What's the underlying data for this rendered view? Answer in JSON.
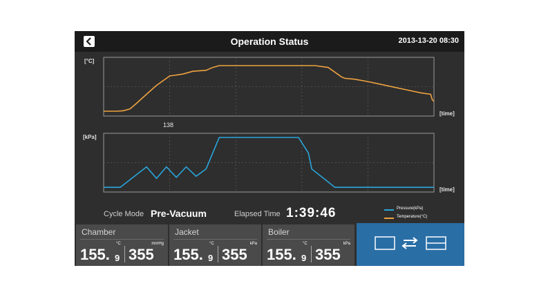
{
  "header": {
    "title": "Operation Status",
    "datetime": "2013-13-20  08:30"
  },
  "colors": {
    "temperature": "#f0a340",
    "pressure": "#2aa6dc",
    "accent": "#2a6ea6"
  },
  "chart_data": [
    {
      "type": "line",
      "ylabel": "[°C]",
      "xlabel": "[time]",
      "x_ticks": [
        "138"
      ],
      "grid": true,
      "series": [
        {
          "name": "Temperature(°C)",
          "x": [
            0,
            4,
            6,
            8,
            10,
            12,
            16,
            20,
            24,
            27,
            31,
            33,
            35,
            39,
            43,
            50,
            59,
            64,
            68,
            72,
            73,
            76,
            80,
            84,
            88,
            92,
            96,
            99,
            99.5,
            100
          ],
          "y": [
            3,
            3,
            4,
            8,
            20,
            33,
            58,
            78,
            82,
            88,
            90,
            96,
            100,
            100,
            100,
            100,
            100,
            100,
            96,
            76,
            73,
            71,
            66,
            60,
            54,
            48,
            42,
            39,
            27,
            24
          ]
        }
      ]
    },
    {
      "type": "line",
      "ylabel": "[kPa]",
      "xlabel": "[time]",
      "grid": true,
      "series": [
        {
          "name": "Pressure(kPa)",
          "x": [
            0,
            5,
            13,
            16,
            19,
            22,
            25,
            28,
            31,
            35,
            59,
            62,
            63,
            65,
            67,
            70,
            100
          ],
          "y": [
            5,
            5,
            44,
            22,
            44,
            24,
            44,
            26,
            40,
            100,
            100,
            70,
            40,
            30,
            20,
            5,
            5
          ]
        }
      ]
    }
  ],
  "info": {
    "cycle_mode_label": "Cycle Mode",
    "cycle_mode_value": "Pre-Vacuum",
    "elapsed_label": "Elapsed Time",
    "elapsed_value": "1:39:46"
  },
  "legend": [
    {
      "name": "Pressure(kPa)"
    },
    {
      "name": "Temperature(°C)"
    }
  ],
  "panels": [
    {
      "name": "Chamber",
      "temp_unit": "°C",
      "press_unit": "mmHg",
      "temp_int": "155.",
      "temp_dec": "9",
      "press": "355"
    },
    {
      "name": "Jacket",
      "temp_unit": "°C",
      "press_unit": "kPa",
      "temp_int": "155.",
      "temp_dec": "9",
      "press": "355"
    },
    {
      "name": "Boiler",
      "temp_unit": "°C",
      "press_unit": "kPa",
      "temp_int": "155.",
      "temp_dec": "9",
      "press": "355"
    }
  ]
}
